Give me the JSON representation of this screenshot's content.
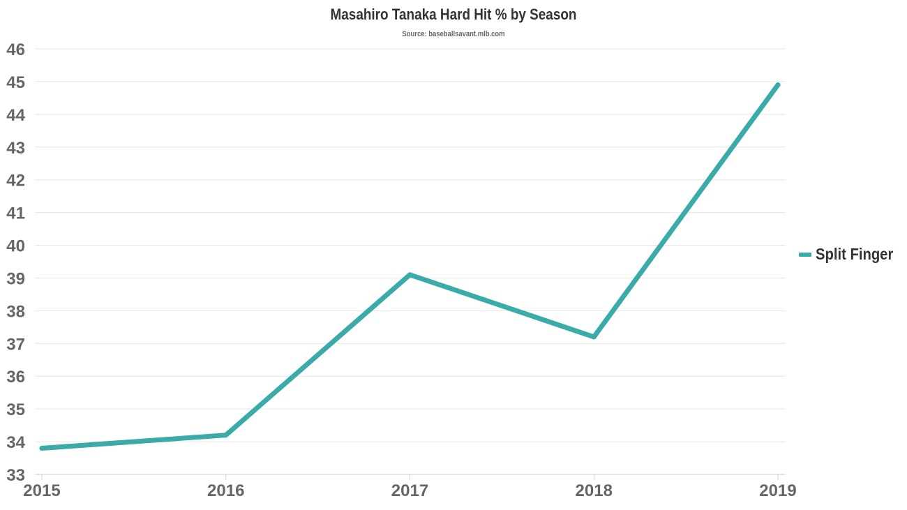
{
  "chart_data": {
    "type": "line",
    "title": "Masahiro Tanaka Hard Hit % by Season",
    "subtitle": "Source: baseballsavant.mlb.com",
    "xlabel": "",
    "ylabel": "",
    "categories": [
      "2015",
      "2016",
      "2017",
      "2018",
      "2019"
    ],
    "yticks": [
      33,
      34,
      35,
      36,
      37,
      38,
      39,
      40,
      41,
      42,
      43,
      44,
      45,
      46
    ],
    "ylim": [
      33,
      46
    ],
    "grid": true,
    "legend_position": "right",
    "series": [
      {
        "name": "Split Finger",
        "color": "#3aaba9",
        "values": [
          33.8,
          34.2,
          39.1,
          37.2,
          44.9
        ]
      }
    ]
  }
}
